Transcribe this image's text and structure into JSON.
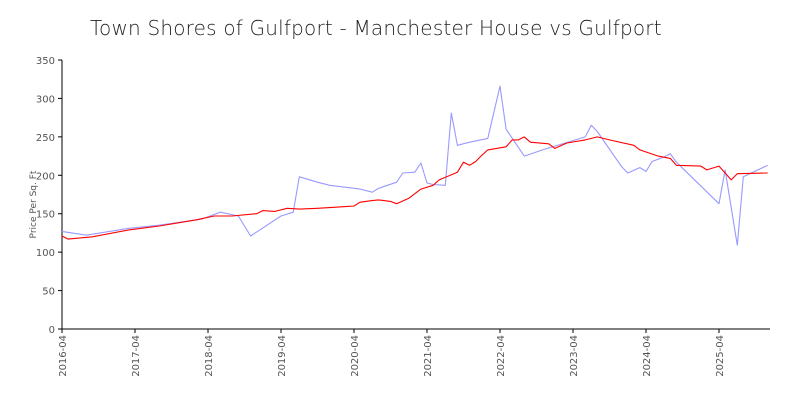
{
  "chart_data": {
    "type": "line",
    "title": "Town Shores of Gulfport - Manchester House vs Gulfport",
    "xlabel": "",
    "ylabel": "Price Per Sq. Ft",
    "ylim": [
      0,
      350
    ],
    "yticks": [
      "0",
      "50",
      "100",
      "150",
      "200",
      "250",
      "300",
      "350"
    ],
    "xticks": [
      "2016-04",
      "2017-04",
      "2018-04",
      "2019-04",
      "2020-04",
      "2021-04",
      "2022-04",
      "2023-04",
      "2024-04",
      "2025-04"
    ],
    "grid": false,
    "series": [
      {
        "color": "#9999ff",
        "points": [
          [
            "2016-04",
            127
          ],
          [
            "2016-08",
            122
          ],
          [
            "2017-03",
            131
          ],
          [
            "2017-08",
            135
          ],
          [
            "2018-03",
            143
          ],
          [
            "2018-06",
            152
          ],
          [
            "2018-09",
            147
          ],
          [
            "2018-11",
            121
          ],
          [
            "2019-04",
            147
          ],
          [
            "2019-06",
            152
          ],
          [
            "2019-07",
            198
          ],
          [
            "2019-10",
            191
          ],
          [
            "2019-12",
            187
          ],
          [
            "2020-05",
            182
          ],
          [
            "2020-07",
            178
          ],
          [
            "2020-08",
            183
          ],
          [
            "2020-11",
            191
          ],
          [
            "2020-12",
            203
          ],
          [
            "2021-02",
            204
          ],
          [
            "2021-03",
            216
          ],
          [
            "2021-04",
            190
          ],
          [
            "2021-05",
            188
          ],
          [
            "2021-07",
            187
          ],
          [
            "2021-08",
            281
          ],
          [
            "2021-09",
            239
          ],
          [
            "2021-11",
            243
          ],
          [
            "2022-02",
            248
          ],
          [
            "2022-04",
            316
          ],
          [
            "2022-05",
            260
          ],
          [
            "2022-08",
            225
          ],
          [
            "2022-11",
            233
          ],
          [
            "2023-06",
            250
          ],
          [
            "2023-07",
            265
          ],
          [
            "2023-08",
            257
          ],
          [
            "2023-12",
            211
          ],
          [
            "2024-01",
            203
          ],
          [
            "2024-03",
            210
          ],
          [
            "2024-04",
            205
          ],
          [
            "2024-05",
            218
          ],
          [
            "2024-07",
            224
          ],
          [
            "2024-08",
            228
          ],
          [
            "2024-09",
            217
          ],
          [
            "2025-04",
            163
          ],
          [
            "2025-05",
            207
          ],
          [
            "2025-07",
            109
          ],
          [
            "2025-08",
            198
          ],
          [
            "2025-12",
            213
          ]
        ]
      },
      {
        "color": "#ff0000",
        "points": [
          [
            "2016-04",
            121
          ],
          [
            "2016-05",
            117
          ],
          [
            "2016-09",
            120
          ],
          [
            "2017-03",
            129
          ],
          [
            "2017-08",
            134
          ],
          [
            "2018-02",
            142
          ],
          [
            "2018-05",
            147
          ],
          [
            "2018-08",
            147
          ],
          [
            "2018-12",
            150
          ],
          [
            "2019-01",
            154
          ],
          [
            "2019-03",
            153
          ],
          [
            "2019-05",
            157
          ],
          [
            "2019-07",
            156
          ],
          [
            "2019-10",
            157
          ],
          [
            "2020-02",
            159
          ],
          [
            "2020-04",
            160
          ],
          [
            "2020-05",
            165
          ],
          [
            "2020-07",
            167
          ],
          [
            "2020-08",
            168
          ],
          [
            "2020-10",
            166
          ],
          [
            "2020-11",
            163
          ],
          [
            "2021-01",
            170
          ],
          [
            "2021-03",
            182
          ],
          [
            "2021-05",
            187
          ],
          [
            "2021-06",
            194
          ],
          [
            "2021-09",
            204
          ],
          [
            "2021-10",
            217
          ],
          [
            "2021-11",
            213
          ],
          [
            "2021-12",
            218
          ],
          [
            "2022-01",
            226
          ],
          [
            "2022-02",
            233
          ],
          [
            "2022-05",
            237
          ],
          [
            "2022-06",
            246
          ],
          [
            "2022-07",
            246
          ],
          [
            "2022-08",
            250
          ],
          [
            "2022-09",
            243
          ],
          [
            "2022-12",
            241
          ],
          [
            "2023-01",
            235
          ],
          [
            "2023-03",
            242
          ],
          [
            "2023-06",
            246
          ],
          [
            "2023-08",
            250
          ],
          [
            "2023-10",
            246
          ],
          [
            "2024-02",
            239
          ],
          [
            "2024-03",
            233
          ],
          [
            "2024-06",
            225
          ],
          [
            "2024-08",
            222
          ],
          [
            "2024-09",
            213
          ],
          [
            "2025-01",
            212
          ],
          [
            "2025-02",
            207
          ],
          [
            "2025-04",
            212
          ],
          [
            "2025-06",
            194
          ],
          [
            "2025-07",
            202
          ],
          [
            "2025-12",
            203
          ]
        ]
      }
    ]
  }
}
